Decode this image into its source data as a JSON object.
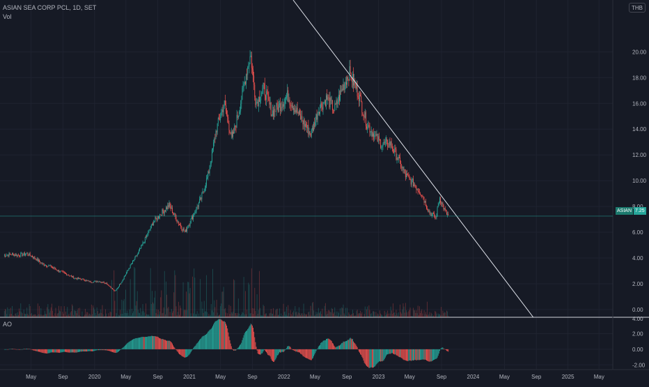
{
  "header": {
    "symbol_line": "ASIAN SEA CORP PCL, 1D, SET",
    "volume_label": "Vol",
    "ao_label": "AO",
    "currency": "THB"
  },
  "last_price": {
    "symbol": "ASIAN",
    "value": "7.25"
  },
  "colors": {
    "background": "#161a25",
    "up": "#26a69a",
    "down": "#ef5350",
    "grid": "#1f2330",
    "text": "#b2b5be",
    "trendline": "#e0e3eb",
    "price_line": "#26a69a"
  },
  "chart_data": {
    "type": "candlestick",
    "symbol": "ASIAN SEA CORP PCL",
    "interval": "1D",
    "exchange": "SET",
    "currency": "THB",
    "price_axis": {
      "ticks": [
        "0.00",
        "2.00",
        "4.00",
        "6.00",
        "8.00",
        "10.00",
        "12.00",
        "14.00",
        "16.00",
        "18.00",
        "20.00"
      ],
      "ylim": [
        -0.6,
        22.4
      ]
    },
    "ao_axis": {
      "ticks": [
        "4.00",
        "2.00",
        "0.00",
        "-2.00"
      ],
      "ylim": [
        -2.6,
        4.1
      ]
    },
    "time_axis": {
      "ticks": [
        "May",
        "Sep",
        "2020",
        "May",
        "Sep",
        "2021",
        "May",
        "Sep",
        "2022",
        "May",
        "Sep",
        "2023",
        "May",
        "Sep",
        "2024",
        "May",
        "Sep",
        "2025",
        "May"
      ],
      "tick_dates": [
        "2019-05-01",
        "2019-09-01",
        "2020-01-01",
        "2020-05-01",
        "2020-09-01",
        "2021-01-01",
        "2021-05-01",
        "2021-09-01",
        "2022-01-01",
        "2022-05-01",
        "2022-09-01",
        "2023-01-01",
        "2023-05-01",
        "2023-09-01",
        "2024-01-01",
        "2024-05-01",
        "2024-09-01",
        "2025-01-01",
        "2025-05-01"
      ]
    },
    "price_path": [
      [
        "2019-01-15",
        4.2
      ],
      [
        "2019-02-15",
        4.3
      ],
      [
        "2019-03-15",
        4.2
      ],
      [
        "2019-04-15",
        4.35
      ],
      [
        "2019-05-15",
        4.0
      ],
      [
        "2019-06-15",
        3.5
      ],
      [
        "2019-07-15",
        3.35
      ],
      [
        "2019-08-15",
        3.0
      ],
      [
        "2019-09-15",
        2.75
      ],
      [
        "2019-10-15",
        2.45
      ],
      [
        "2019-11-15",
        2.35
      ],
      [
        "2019-12-15",
        2.15
      ],
      [
        "2020-01-15",
        2.2
      ],
      [
        "2020-02-15",
        2.05
      ],
      [
        "2020-03-20",
        1.4
      ],
      [
        "2020-04-15",
        2.2
      ],
      [
        "2020-05-15",
        3.3
      ],
      [
        "2020-06-15",
        4.3
      ],
      [
        "2020-07-15",
        5.5
      ],
      [
        "2020-08-15",
        6.8
      ],
      [
        "2020-09-15",
        7.5
      ],
      [
        "2020-10-15",
        8.1
      ],
      [
        "2020-11-15",
        6.9
      ],
      [
        "2020-12-15",
        6.0
      ],
      [
        "2021-01-15",
        7.3
      ],
      [
        "2021-02-15",
        8.6
      ],
      [
        "2021-03-15",
        10.5
      ],
      [
        "2021-04-15",
        14.0
      ],
      [
        "2021-05-15",
        16.0
      ],
      [
        "2021-06-15",
        13.2
      ],
      [
        "2021-07-15",
        15.8
      ],
      [
        "2021-08-10",
        18.5
      ],
      [
        "2021-08-25",
        19.8
      ],
      [
        "2021-09-15",
        16.0
      ],
      [
        "2021-10-15",
        17.2
      ],
      [
        "2021-11-15",
        15.3
      ],
      [
        "2021-12-15",
        15.8
      ],
      [
        "2022-01-15",
        16.6
      ],
      [
        "2022-02-15",
        15.5
      ],
      [
        "2022-03-15",
        14.6
      ],
      [
        "2022-04-15",
        13.6
      ],
      [
        "2022-05-15",
        15.6
      ],
      [
        "2022-06-15",
        16.4
      ],
      [
        "2022-07-15",
        15.5
      ],
      [
        "2022-08-15",
        17.2
      ],
      [
        "2022-09-10",
        18.4
      ],
      [
        "2022-10-15",
        16.8
      ],
      [
        "2022-11-15",
        14.5
      ],
      [
        "2022-12-15",
        13.5
      ],
      [
        "2023-01-15",
        12.8
      ],
      [
        "2023-02-15",
        12.9
      ],
      [
        "2023-03-15",
        11.8
      ],
      [
        "2023-04-15",
        10.4
      ],
      [
        "2023-05-15",
        9.8
      ],
      [
        "2023-06-15",
        9.0
      ],
      [
        "2023-07-15",
        7.6
      ],
      [
        "2023-08-10",
        7.1
      ],
      [
        "2023-08-25",
        8.7
      ],
      [
        "2023-09-15",
        7.6
      ],
      [
        "2023-09-28",
        7.25
      ]
    ],
    "trendline": {
      "from": [
        "2022-09-05",
        18.4
      ],
      "to": [
        "2024-08-20",
        -0.6
      ]
    },
    "last_price_line": 7.25
  }
}
